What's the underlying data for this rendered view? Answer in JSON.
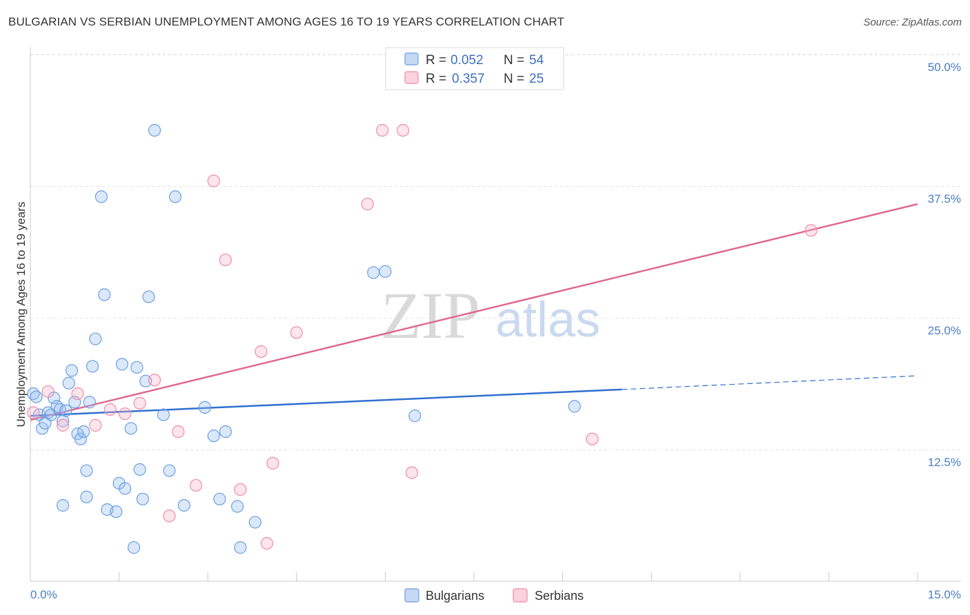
{
  "title": "BULGARIAN VS SERBIAN UNEMPLOYMENT AMONG AGES 16 TO 19 YEARS CORRELATION CHART",
  "source": "Source: ZipAtlas.com",
  "watermark": {
    "zip": "ZIP",
    "atlas": "atlas"
  },
  "colors": {
    "blue": "#6a9fe0",
    "blue_line": "#2e6fd0",
    "pink": "#f08aa8",
    "pink_line": "#e0688f",
    "axis_text": "#4a7cc9"
  },
  "legend": {
    "rows": [
      {
        "r_label": "R =",
        "r_value": "0.052",
        "n_label": "N =",
        "n_value": "54"
      },
      {
        "r_label": "R =",
        "r_value": "0.357",
        "n_label": "N =",
        "n_value": "25"
      }
    ]
  },
  "chart_data": {
    "type": "scatter",
    "title": "BULGARIAN VS SERBIAN UNEMPLOYMENT AMONG AGES 16 TO 19 YEARS CORRELATION CHART",
    "xlabel": "",
    "ylabel": "Unemployment Among Ages 16 to 19 years",
    "xlim": [
      0,
      15
    ],
    "ylim": [
      0,
      50
    ],
    "x_tick_labels": [
      "0.0%",
      "15.0%"
    ],
    "y_ticks": [
      12.5,
      25.0,
      37.5,
      50.0
    ],
    "y_tick_labels": [
      "12.5%",
      "25.0%",
      "37.5%",
      "50.0%"
    ],
    "grid": true,
    "legend_position": "top-center",
    "series": [
      {
        "name": "Bulgarians",
        "color": "#6a9fe0",
        "trend": {
          "x": [
            0,
            10
          ],
          "y": [
            15.7,
            18.2
          ],
          "dashed_to_x": 15,
          "dashed_to_y": 19.5
        },
        "points": [
          [
            0.05,
            17.8
          ],
          [
            0.1,
            17.5
          ],
          [
            0.15,
            15.8
          ],
          [
            0.2,
            14.5
          ],
          [
            0.25,
            15.0
          ],
          [
            0.3,
            16.0
          ],
          [
            0.35,
            15.8
          ],
          [
            0.4,
            17.4
          ],
          [
            0.45,
            16.6
          ],
          [
            0.5,
            16.3
          ],
          [
            0.55,
            15.2
          ],
          [
            0.6,
            16.2
          ],
          [
            0.65,
            18.8
          ],
          [
            0.7,
            20.0
          ],
          [
            0.75,
            17.0
          ],
          [
            0.8,
            14.0
          ],
          [
            0.85,
            13.5
          ],
          [
            0.9,
            14.2
          ],
          [
            0.95,
            10.5
          ],
          [
            1.0,
            17.0
          ],
          [
            1.05,
            20.4
          ],
          [
            1.1,
            23.0
          ],
          [
            1.2,
            36.5
          ],
          [
            1.25,
            27.2
          ],
          [
            1.3,
            6.8
          ],
          [
            1.45,
            6.6
          ],
          [
            1.5,
            9.3
          ],
          [
            1.55,
            20.6
          ],
          [
            1.6,
            8.8
          ],
          [
            1.7,
            14.5
          ],
          [
            1.8,
            20.3
          ],
          [
            1.85,
            10.6
          ],
          [
            1.9,
            7.8
          ],
          [
            1.95,
            19.0
          ],
          [
            2.0,
            27.0
          ],
          [
            2.1,
            42.8
          ],
          [
            2.25,
            15.8
          ],
          [
            2.35,
            10.5
          ],
          [
            2.45,
            36.5
          ],
          [
            2.6,
            7.2
          ],
          [
            2.95,
            16.5
          ],
          [
            3.1,
            13.8
          ],
          [
            3.2,
            7.8
          ],
          [
            3.3,
            14.2
          ],
          [
            3.5,
            7.1
          ],
          [
            3.55,
            3.2
          ],
          [
            3.8,
            5.6
          ],
          [
            0.55,
            7.2
          ],
          [
            0.95,
            8.0
          ],
          [
            1.75,
            3.2
          ],
          [
            5.8,
            29.3
          ],
          [
            6.0,
            29.4
          ],
          [
            6.5,
            15.7
          ],
          [
            9.2,
            16.6
          ]
        ]
      },
      {
        "name": "Serbians",
        "color": "#f08aa8",
        "trend": {
          "x": [
            0,
            15
          ],
          "y": [
            15.3,
            35.8
          ]
        },
        "points": [
          [
            0.05,
            16.0
          ],
          [
            0.3,
            18.0
          ],
          [
            0.55,
            14.8
          ],
          [
            0.8,
            17.8
          ],
          [
            1.1,
            14.8
          ],
          [
            1.35,
            16.3
          ],
          [
            1.6,
            15.9
          ],
          [
            1.85,
            16.9
          ],
          [
            2.1,
            19.1
          ],
          [
            2.35,
            6.2
          ],
          [
            2.5,
            14.2
          ],
          [
            2.8,
            9.1
          ],
          [
            3.1,
            38.0
          ],
          [
            3.3,
            30.5
          ],
          [
            3.55,
            8.7
          ],
          [
            3.9,
            21.8
          ],
          [
            4.1,
            11.2
          ],
          [
            4.5,
            23.6
          ],
          [
            4.0,
            3.6
          ],
          [
            5.7,
            35.8
          ],
          [
            5.95,
            42.8
          ],
          [
            6.3,
            42.8
          ],
          [
            6.45,
            10.3
          ],
          [
            9.5,
            13.5
          ],
          [
            13.2,
            33.3
          ]
        ]
      }
    ]
  },
  "bottom_legend": {
    "bulgarians": "Bulgarians",
    "serbians": "Serbians"
  }
}
